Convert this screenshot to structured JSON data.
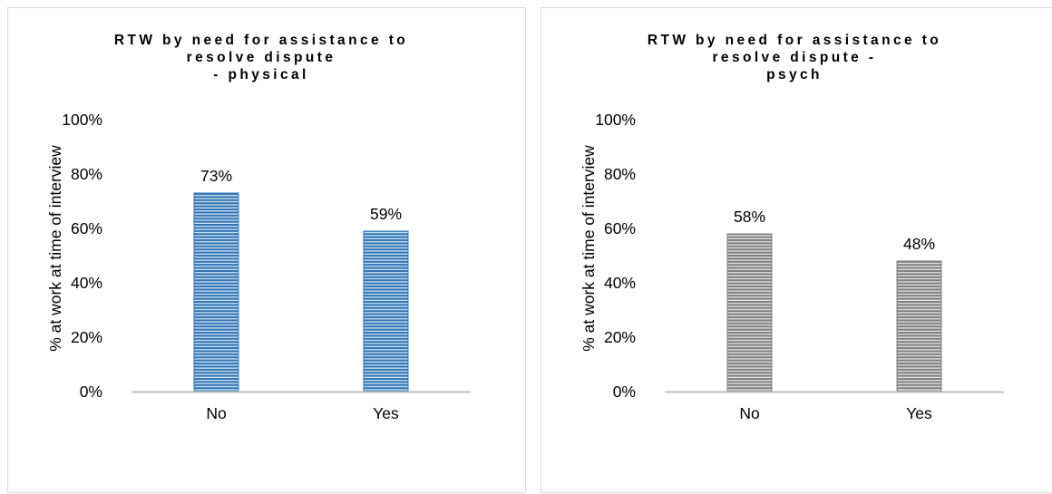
{
  "chart_data": [
    {
      "type": "bar",
      "title": "RTW by need for assistance to\nresolve dispute\n- physical",
      "ylabel": "% at work at time of interview",
      "xlabel": "",
      "categories": [
        "No",
        "Yes"
      ],
      "values": [
        73,
        59
      ],
      "data_labels": [
        "73%",
        "59%"
      ],
      "ylim": [
        0,
        100
      ],
      "yticks": [
        "0%",
        "20%",
        "40%",
        "60%",
        "80%",
        "100%"
      ],
      "grid": false,
      "color": "#2e75b6",
      "pattern": "horizontal-stripes"
    },
    {
      "type": "bar",
      "title": "RTW by need for assistance to\nresolve dispute -\npsych",
      "ylabel": "% at work at time of interview",
      "xlabel": "",
      "categories": [
        "No",
        "Yes"
      ],
      "values": [
        58,
        48
      ],
      "data_labels": [
        "58%",
        "48%"
      ],
      "ylim": [
        0,
        100
      ],
      "yticks": [
        "0%",
        "20%",
        "40%",
        "60%",
        "80%",
        "100%"
      ],
      "grid": false,
      "color": "#7f7f7f",
      "pattern": "horizontal-stripes"
    }
  ]
}
